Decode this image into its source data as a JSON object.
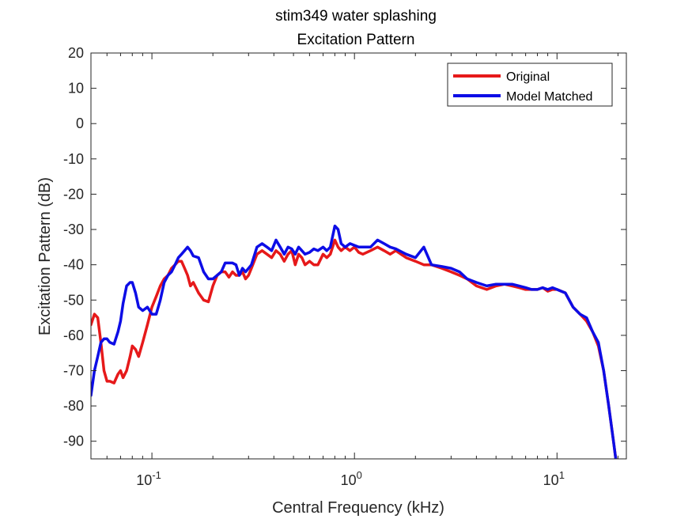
{
  "chart_data": {
    "type": "line",
    "title": "stim349 water splashing",
    "subtitle": "Excitation Pattern",
    "xlabel": "Central Frequency (kHz)",
    "ylabel": "Excitation Pattern (dB)",
    "xscale": "log",
    "xlim": [
      0.05,
      22
    ],
    "ylim": [
      -95,
      20
    ],
    "x_ticks": [
      {
        "value": 0.1,
        "base": "10",
        "exp": "-1"
      },
      {
        "value": 1,
        "base": "10",
        "exp": "0"
      },
      {
        "value": 10,
        "base": "10",
        "exp": "1"
      }
    ],
    "y_ticks": [
      20,
      10,
      0,
      -10,
      -20,
      -30,
      -40,
      -50,
      -60,
      -70,
      -80,
      -90
    ],
    "grid": false,
    "legend_position": "top-right",
    "series": [
      {
        "name": "Original",
        "color": "#e6191a",
        "x": [
          0.05,
          0.052,
          0.054,
          0.056,
          0.058,
          0.06,
          0.062,
          0.065,
          0.068,
          0.07,
          0.072,
          0.075,
          0.078,
          0.08,
          0.083,
          0.086,
          0.09,
          0.095,
          0.1,
          0.105,
          0.11,
          0.115,
          0.12,
          0.125,
          0.13,
          0.135,
          0.14,
          0.145,
          0.15,
          0.155,
          0.16,
          0.17,
          0.18,
          0.19,
          0.2,
          0.21,
          0.22,
          0.23,
          0.24,
          0.25,
          0.26,
          0.27,
          0.28,
          0.29,
          0.3,
          0.31,
          0.33,
          0.35,
          0.37,
          0.39,
          0.41,
          0.43,
          0.45,
          0.47,
          0.49,
          0.51,
          0.53,
          0.55,
          0.57,
          0.6,
          0.63,
          0.66,
          0.7,
          0.73,
          0.76,
          0.8,
          0.83,
          0.86,
          0.9,
          0.95,
          1.0,
          1.05,
          1.1,
          1.2,
          1.3,
          1.4,
          1.5,
          1.6,
          1.8,
          2.0,
          2.2,
          2.4,
          2.7,
          3.0,
          3.3,
          3.6,
          4.0,
          4.5,
          5.0,
          5.5,
          6.0,
          6.5,
          7.0,
          7.5,
          8.0,
          8.5,
          9.0,
          9.5,
          10.0,
          11.0,
          12.0,
          13.0,
          14.0,
          15.0,
          16.0,
          17.0,
          18.0,
          19.0,
          19.5
        ],
        "y": [
          -57,
          -54,
          -55,
          -62,
          -70,
          -73,
          -73,
          -73.5,
          -71,
          -70,
          -72,
          -70,
          -66,
          -63,
          -64,
          -66,
          -62,
          -57,
          -52,
          -49,
          -46,
          -44,
          -43,
          -41,
          -40,
          -39,
          -39,
          -41,
          -43,
          -46,
          -45,
          -48,
          -50,
          -50.5,
          -46,
          -43,
          -42,
          -42,
          -43.5,
          -42,
          -43,
          -43,
          -42,
          -44,
          -43,
          -41,
          -37,
          -36,
          -37,
          -38,
          -36,
          -37,
          -39,
          -37,
          -36,
          -40,
          -37,
          -38,
          -40,
          -39,
          -40,
          -40,
          -37,
          -38,
          -37,
          -33,
          -35,
          -36,
          -35,
          -36,
          -35,
          -36.5,
          -37,
          -36,
          -35,
          -36,
          -37,
          -36,
          -38,
          -39,
          -40,
          -40,
          -41,
          -42,
          -43,
          -44,
          -46,
          -47,
          -46,
          -45.5,
          -46,
          -46.5,
          -47,
          -47,
          -47,
          -46.5,
          -47.5,
          -47,
          -47,
          -48,
          -52,
          -54,
          -56,
          -59,
          -63,
          -70,
          -80,
          -90,
          -95
        ]
      },
      {
        "name": "Model Matched",
        "color": "#0d0de6",
        "x": [
          0.05,
          0.052,
          0.054,
          0.056,
          0.058,
          0.06,
          0.062,
          0.065,
          0.068,
          0.07,
          0.072,
          0.075,
          0.078,
          0.08,
          0.083,
          0.086,
          0.09,
          0.095,
          0.1,
          0.105,
          0.11,
          0.115,
          0.12,
          0.125,
          0.13,
          0.135,
          0.14,
          0.145,
          0.15,
          0.155,
          0.16,
          0.17,
          0.18,
          0.19,
          0.2,
          0.21,
          0.22,
          0.23,
          0.24,
          0.25,
          0.26,
          0.27,
          0.28,
          0.29,
          0.3,
          0.31,
          0.33,
          0.35,
          0.37,
          0.39,
          0.41,
          0.43,
          0.45,
          0.47,
          0.49,
          0.51,
          0.53,
          0.55,
          0.57,
          0.6,
          0.63,
          0.66,
          0.7,
          0.73,
          0.76,
          0.8,
          0.83,
          0.86,
          0.9,
          0.95,
          1.0,
          1.05,
          1.1,
          1.2,
          1.3,
          1.4,
          1.5,
          1.6,
          1.8,
          2.0,
          2.2,
          2.4,
          2.7,
          3.0,
          3.3,
          3.6,
          4.0,
          4.5,
          5.0,
          5.5,
          6.0,
          6.5,
          7.0,
          7.5,
          8.0,
          8.5,
          9.0,
          9.5,
          10.0,
          11.0,
          12.0,
          13.0,
          14.0,
          15.0,
          16.0,
          17.0,
          18.0,
          19.0,
          19.5
        ],
        "y": [
          -77,
          -70,
          -66,
          -62,
          -61,
          -61,
          -62,
          -62.5,
          -59,
          -56,
          -51,
          -46,
          -45,
          -45,
          -48,
          -52,
          -53,
          -52,
          -54,
          -54,
          -50,
          -45,
          -43,
          -42,
          -40,
          -38,
          -37,
          -36,
          -35,
          -36,
          -37.5,
          -38,
          -42,
          -44,
          -44,
          -43,
          -42,
          -39.5,
          -39.5,
          -39.5,
          -40,
          -43,
          -41,
          -42,
          -41,
          -40,
          -35,
          -34,
          -35,
          -36,
          -33,
          -35,
          -37,
          -35,
          -35.5,
          -37,
          -35,
          -36,
          -37,
          -36.5,
          -35.5,
          -36,
          -35,
          -36,
          -35,
          -29,
          -30,
          -34,
          -35,
          -34,
          -34.5,
          -35,
          -35,
          -35,
          -33,
          -34,
          -35,
          -35.5,
          -37,
          -38,
          -35,
          -40,
          -40.5,
          -41,
          -42,
          -44,
          -45,
          -46,
          -45.5,
          -45.5,
          -45.5,
          -46,
          -46.5,
          -47,
          -47,
          -46.5,
          -47,
          -46.5,
          -47,
          -48,
          -52,
          -54,
          -55,
          -59,
          -62,
          -70,
          -80,
          -90,
          -95
        ]
      }
    ]
  }
}
